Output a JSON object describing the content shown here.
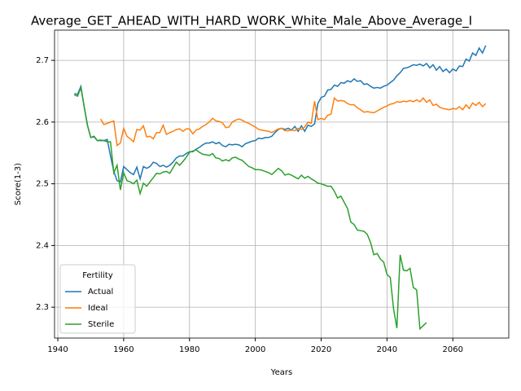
{
  "chart_data": {
    "type": "line",
    "title": "Average_GET_AHEAD_WITH_HARD_WORK_White_Male_Above_Average_I",
    "xlabel": "Years",
    "ylabel": "Score(1-3)",
    "legend_title": "Fertility",
    "legend": "lower left",
    "grid": true,
    "xlim": [
      1939,
      2077
    ],
    "ylim": [
      2.25,
      2.749
    ],
    "xticks": [
      1940,
      1960,
      1980,
      2000,
      2020,
      2040,
      2060
    ],
    "yticks": [
      2.3,
      2.4,
      2.5,
      2.6,
      2.7
    ],
    "x": [
      1945,
      1946,
      1947,
      1948,
      1949,
      1950,
      1951,
      1952,
      1953,
      1954,
      1955,
      1956,
      1957,
      1958,
      1959,
      1960,
      1961,
      1962,
      1963,
      1964,
      1965,
      1966,
      1967,
      1968,
      1969,
      1970,
      1971,
      1972,
      1973,
      1974,
      1975,
      1976,
      1977,
      1978,
      1979,
      1980,
      1981,
      1982,
      1983,
      1984,
      1985,
      1986,
      1987,
      1988,
      1989,
      1990,
      1991,
      1992,
      1993,
      1994,
      1995,
      1996,
      1997,
      1998,
      1999,
      2000,
      2001,
      2002,
      2003,
      2004,
      2005,
      2006,
      2007,
      2008,
      2009,
      2010,
      2011,
      2012,
      2013,
      2014,
      2015,
      2016,
      2017,
      2018,
      2019,
      2020,
      2021,
      2022,
      2023,
      2024,
      2025,
      2026,
      2027,
      2028,
      2029,
      2030,
      2031,
      2032,
      2033,
      2034,
      2035,
      2036,
      2037,
      2038,
      2039,
      2040,
      2041,
      2042,
      2043,
      2044,
      2045,
      2046,
      2047,
      2048,
      2049,
      2050,
      2051,
      2052,
      2053,
      2054,
      2055,
      2056,
      2057,
      2058,
      2059,
      2060,
      2061,
      2062,
      2063,
      2064,
      2065,
      2066,
      2067,
      2068,
      2069,
      2070
    ],
    "series": [
      {
        "name": "Actual",
        "color": "#1f77b4",
        "values": [
          2.646,
          2.645,
          2.658,
          2.625,
          2.595,
          2.575,
          2.577,
          2.57,
          2.57,
          2.57,
          2.572,
          2.545,
          2.52,
          2.505,
          2.503,
          2.528,
          2.523,
          2.518,
          2.515,
          2.527,
          2.508,
          2.528,
          2.525,
          2.528,
          2.535,
          2.533,
          2.528,
          2.53,
          2.527,
          2.53,
          2.535,
          2.542,
          2.545,
          2.545,
          2.549,
          2.552,
          2.552,
          2.556,
          2.559,
          2.563,
          2.566,
          2.566,
          2.568,
          2.565,
          2.567,
          2.562,
          2.56,
          2.564,
          2.563,
          2.564,
          2.563,
          2.56,
          2.565,
          2.567,
          2.569,
          2.57,
          2.574,
          2.573,
          2.575,
          2.575,
          2.577,
          2.583,
          2.588,
          2.59,
          2.588,
          2.59,
          2.587,
          2.593,
          2.585,
          2.594,
          2.585,
          2.595,
          2.593,
          2.597,
          2.63,
          2.64,
          2.642,
          2.652,
          2.653,
          2.66,
          2.658,
          2.664,
          2.663,
          2.667,
          2.665,
          2.67,
          2.666,
          2.667,
          2.661,
          2.662,
          2.658,
          2.655,
          2.656,
          2.655,
          2.658,
          2.66,
          2.664,
          2.668,
          2.675,
          2.68,
          2.687,
          2.688,
          2.69,
          2.693,
          2.692,
          2.694,
          2.691,
          2.695,
          2.688,
          2.693,
          2.684,
          2.69,
          2.682,
          2.686,
          2.68,
          2.686,
          2.683,
          2.691,
          2.69,
          2.702,
          2.699,
          2.712,
          2.708,
          2.72,
          2.712,
          2.724
        ]
      },
      {
        "name": "Ideal",
        "color": "#ff7f0e",
        "values": [
          null,
          null,
          null,
          null,
          null,
          null,
          null,
          null,
          2.605,
          2.596,
          2.598,
          2.6,
          2.602,
          2.562,
          2.566,
          2.59,
          2.577,
          2.573,
          2.568,
          2.588,
          2.587,
          2.594,
          2.576,
          2.577,
          2.573,
          2.583,
          2.583,
          2.595,
          2.58,
          2.583,
          2.585,
          2.588,
          2.589,
          2.585,
          2.589,
          2.589,
          2.581,
          2.587,
          2.589,
          2.593,
          2.596,
          2.6,
          2.606,
          2.602,
          2.601,
          2.599,
          2.591,
          2.592,
          2.6,
          2.603,
          2.605,
          2.603,
          2.6,
          2.598,
          2.595,
          2.592,
          2.588,
          2.587,
          2.586,
          2.585,
          2.583,
          2.586,
          2.589,
          2.59,
          2.586,
          2.586,
          2.587,
          2.586,
          2.59,
          2.588,
          2.592,
          2.6,
          2.598,
          2.634,
          2.604,
          2.606,
          2.604,
          2.611,
          2.613,
          2.639,
          2.634,
          2.635,
          2.634,
          2.63,
          2.628,
          2.628,
          2.623,
          2.62,
          2.616,
          2.617,
          2.616,
          2.615,
          2.618,
          2.621,
          2.624,
          2.626,
          2.629,
          2.63,
          2.633,
          2.632,
          2.634,
          2.633,
          2.635,
          2.633,
          2.636,
          2.633,
          2.639,
          2.632,
          2.636,
          2.627,
          2.629,
          2.624,
          2.622,
          2.621,
          2.62,
          2.622,
          2.621,
          2.625,
          2.62,
          2.628,
          2.622,
          2.631,
          2.627,
          2.632,
          2.625,
          2.63
        ]
      },
      {
        "name": "Sterile",
        "color": "#2ca02c",
        "values": [
          2.644,
          2.642,
          2.656,
          2.625,
          2.595,
          2.575,
          2.576,
          2.57,
          2.571,
          2.57,
          2.568,
          2.568,
          2.518,
          2.53,
          2.49,
          2.518,
          2.505,
          2.503,
          2.5,
          2.506,
          2.484,
          2.501,
          2.496,
          2.503,
          2.51,
          2.517,
          2.516,
          2.519,
          2.52,
          2.517,
          2.526,
          2.535,
          2.53,
          2.536,
          2.543,
          2.551,
          2.553,
          2.555,
          2.551,
          2.548,
          2.547,
          2.546,
          2.549,
          2.542,
          2.541,
          2.537,
          2.539,
          2.537,
          2.542,
          2.543,
          2.54,
          2.538,
          2.533,
          2.528,
          2.526,
          2.523,
          2.523,
          2.522,
          2.52,
          2.518,
          2.515,
          2.52,
          2.525,
          2.521,
          2.514,
          2.516,
          2.514,
          2.511,
          2.508,
          2.514,
          2.509,
          2.512,
          2.508,
          2.505,
          2.501,
          2.5,
          2.498,
          2.496,
          2.496,
          2.488,
          2.477,
          2.48,
          2.47,
          2.46,
          2.438,
          2.434,
          2.425,
          2.424,
          2.423,
          2.418,
          2.405,
          2.385,
          2.387,
          2.378,
          2.373,
          2.353,
          2.348,
          2.297,
          2.266,
          2.385,
          2.36,
          2.359,
          2.363,
          2.332,
          2.328,
          2.265,
          2.27,
          2.275,
          null,
          null,
          null,
          null,
          null,
          null,
          null,
          null,
          null,
          null,
          null,
          null,
          null,
          null,
          null,
          null,
          null,
          null
        ]
      }
    ]
  }
}
